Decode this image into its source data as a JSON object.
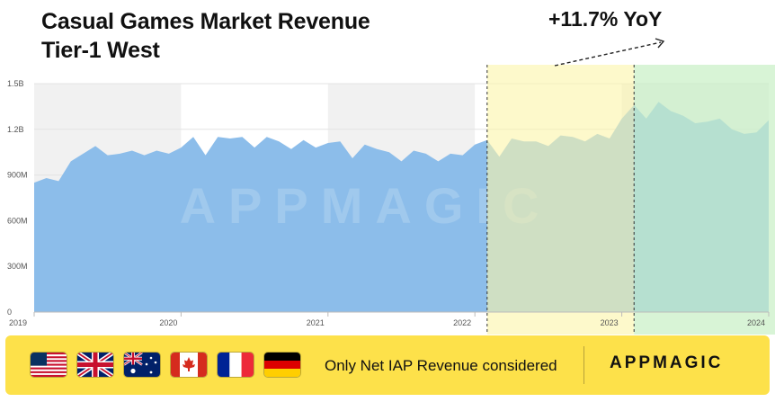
{
  "header": {
    "title_line1": "Casual Games Market Revenue",
    "title_line2": "Tier-1 West",
    "yoy_label": "+11.7% YoY"
  },
  "chart_data": {
    "type": "area",
    "title": "Casual Games Market Revenue Tier-1 West",
    "xlabel": "",
    "ylabel": "",
    "x_tick_labels": [
      "2019",
      "2020",
      "2021",
      "2022",
      "2023",
      "2024"
    ],
    "y_tick_labels": [
      "0",
      "300M",
      "600M",
      "900M",
      "1.2B",
      "1.5B"
    ],
    "ylim": [
      0,
      1500000000
    ],
    "grid": true,
    "watermark": "APPMAGIC",
    "colors": {
      "area": "#8cbdea",
      "highlight_2022": "#fbf5a8",
      "highlight_2023": "#c8efc4",
      "dashed_line": "#333333"
    },
    "highlight_periods": [
      {
        "start": "2022-02",
        "end": "2023-02"
      },
      {
        "start": "2023-02",
        "end": "2024-02"
      }
    ],
    "series": [
      {
        "months_from": "2019-01",
        "values": [
          850000000,
          880000000,
          860000000,
          990000000,
          1040000000,
          1090000000,
          1030000000,
          1040000000,
          1060000000,
          1030000000,
          1060000000,
          1040000000,
          1080000000,
          1150000000,
          1030000000,
          1150000000,
          1140000000,
          1150000000,
          1080000000,
          1150000000,
          1120000000,
          1070000000,
          1130000000,
          1080000000,
          1110000000,
          1120000000,
          1010000000,
          1100000000,
          1070000000,
          1050000000,
          990000000,
          1060000000,
          1040000000,
          990000000,
          1040000000,
          1030000000,
          1100000000,
          1130000000,
          1020000000,
          1140000000,
          1120000000,
          1120000000,
          1090000000,
          1160000000,
          1150000000,
          1120000000,
          1170000000,
          1140000000,
          1270000000,
          1360000000,
          1270000000,
          1380000000,
          1320000000,
          1290000000,
          1240000000,
          1250000000,
          1270000000,
          1200000000,
          1170000000,
          1180000000,
          1260000000
        ]
      }
    ]
  },
  "footer": {
    "flags": [
      "us-flag-icon",
      "uk-flag-icon",
      "australia-flag-icon",
      "canada-flag-icon",
      "france-flag-icon",
      "germany-flag-icon"
    ],
    "note": "Only Net IAP Revenue considered",
    "brand": "APPMAGIC"
  }
}
